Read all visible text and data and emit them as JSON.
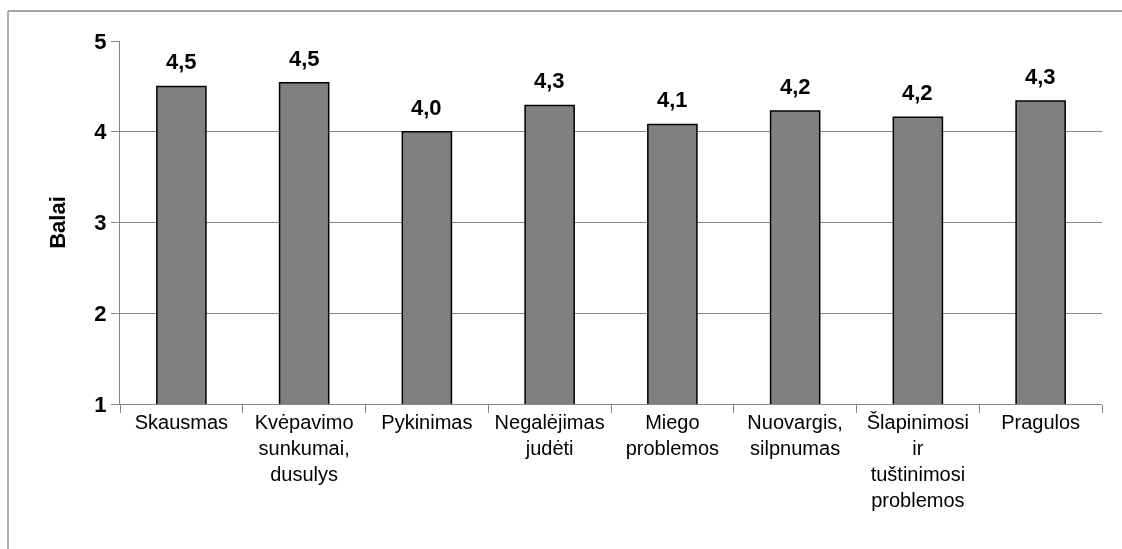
{
  "chart_data": {
    "type": "bar",
    "ylabel": "Balai",
    "categories": [
      "Skausmas",
      "Kvėpavimo sunkumai, dusulys",
      "Pykinimas",
      "Negalėjimas judėti",
      "Miego problemos",
      "Nuovargis, silpnumas",
      "Šlapinimosi ir tuštinimosi problemos",
      "Pragulos"
    ],
    "values": [
      4.5,
      4.54,
      4.0,
      4.29,
      4.08,
      4.23,
      4.16,
      4.34
    ],
    "value_labels": [
      "4,5",
      "4,5",
      "4,0",
      "4,3",
      "4,1",
      "4,2",
      "4,2",
      "4,3"
    ],
    "color": "#808080",
    "ylim": [
      1,
      5
    ],
    "yticks": [
      1,
      2,
      3,
      4,
      5
    ],
    "grid": "y"
  }
}
